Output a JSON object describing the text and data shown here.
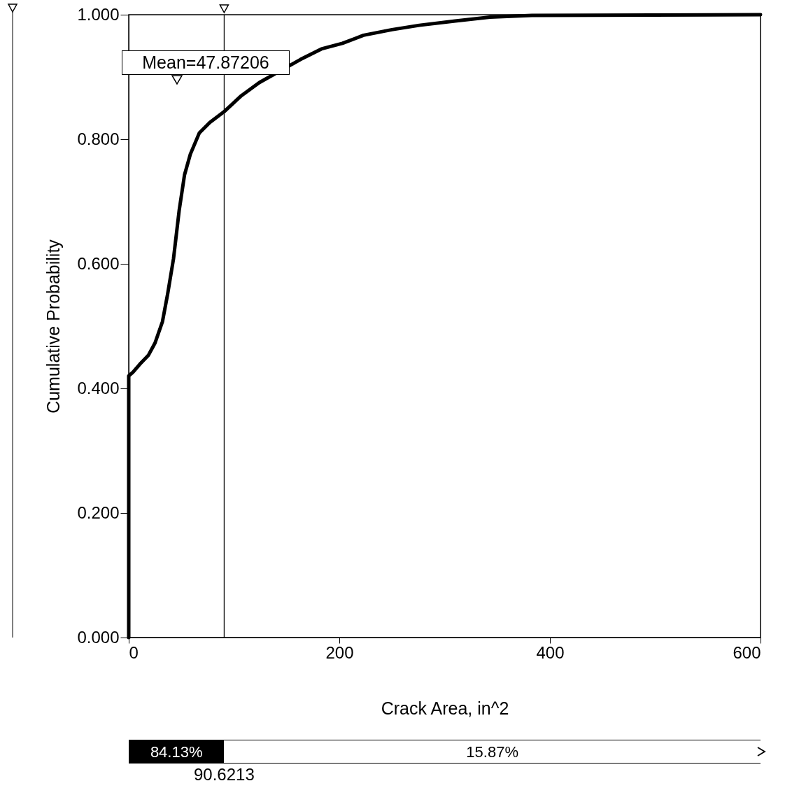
{
  "chart_data": {
    "type": "line",
    "xlabel": "Crack Area, in^2",
    "ylabel": "Cumulative Probability",
    "x": [
      0,
      0,
      4,
      10.6,
      18.6,
      25,
      32,
      37,
      42.5,
      48,
      53,
      58.5,
      67,
      77,
      90.4,
      107,
      124,
      163,
      183,
      203,
      223,
      250,
      276,
      310,
      343,
      383,
      600
    ],
    "series": [
      {
        "color": "#000000",
        "values": [
          0,
          0.42,
          0.426,
          0.439,
          0.453,
          0.473,
          0.507,
          0.552,
          0.608,
          0.687,
          0.743,
          0.776,
          0.81,
          0.827,
          0.844,
          0.87,
          0.891,
          0.928,
          0.945,
          0.954,
          0.967,
          0.976,
          0.983,
          0.99,
          0.996,
          0.999,
          1.0
        ]
      }
    ],
    "xlim": [
      0,
      600
    ],
    "xticks": [
      0,
      200,
      400,
      600
    ],
    "ylim": [
      0,
      1
    ],
    "yticks": [
      {
        "value": 0,
        "label": "0.000"
      },
      {
        "value": 0.2,
        "label": "0.200"
      },
      {
        "value": 0.4,
        "label": "0.400"
      },
      {
        "value": 0.6,
        "label": "0.600"
      },
      {
        "value": 0.8,
        "label": "0.800"
      },
      {
        "value": 1,
        "label": "1.000"
      }
    ],
    "ref_lines": [
      {
        "axis": "x",
        "value": 90.6213,
        "label": "90.6213",
        "color": "#000000"
      }
    ],
    "annotations": [
      "Mean=47.87206",
      "84.13%",
      "15.87%"
    ],
    "grid": false,
    "marker": "none",
    "line_style": "solid"
  }
}
